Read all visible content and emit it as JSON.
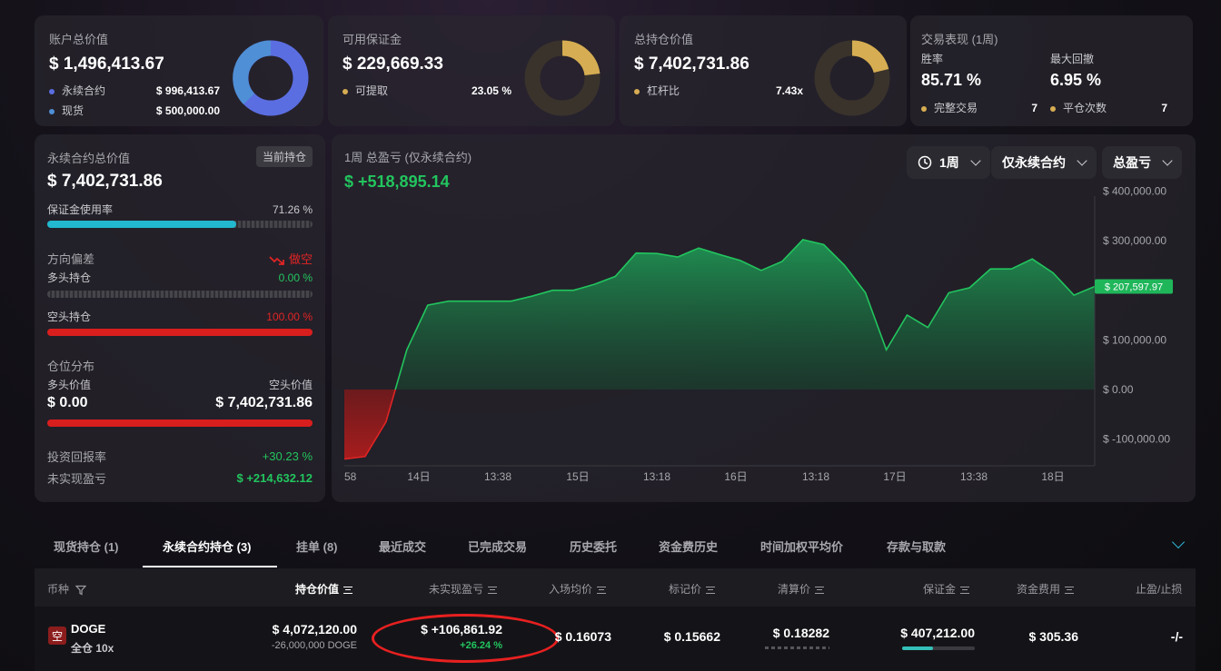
{
  "account": {
    "title": "账户总价值",
    "value": "$ 1,496,413.67",
    "items": [
      {
        "label": "永续合约",
        "value": "$ 996,413.67",
        "color": "#5b6ee1"
      },
      {
        "label": "现货",
        "value": "$ 500,000.00",
        "color": "#4f8fd6"
      }
    ]
  },
  "margin": {
    "title": "可用保证金",
    "value": "$ 229,669.33",
    "item_label": "可提取",
    "item_value": "23.05 %",
    "color": "#d6ad52"
  },
  "position_total": {
    "title": "总持仓价值",
    "value": "$ 7,402,731.86",
    "item_label": "杠杆比",
    "item_value": "7.43x",
    "color": "#d6ad52"
  },
  "performance": {
    "title": "交易表现 (1周)",
    "win_label": "胜率",
    "win_value": "85.71 %",
    "dd_label": "最大回撤",
    "dd_value": "6.95 %",
    "trades_label": "完整交易",
    "trades_value": "7",
    "close_label": "平仓次数",
    "close_value": "7"
  },
  "perp": {
    "title": "永续合约总价值",
    "badge": "当前持仓",
    "value": "$ 7,402,731.86",
    "margin_use_label": "保证金使用率",
    "margin_use_value": "71.26 %",
    "margin_use": 0.7126,
    "bias_label": "方向偏差",
    "bias_value": "做空",
    "long_label": "多头持仓",
    "long_value": "0.00 %",
    "short_label": "空头持仓",
    "short_value": "100.00 %",
    "dist_label": "仓位分布",
    "long_val_label": "多头价值",
    "short_val_label": "空头价值",
    "long_val": "$ 0.00",
    "short_val": "$ 7,402,731.86",
    "roi_label": "投资回报率",
    "roi_value": "+30.23 %",
    "upnl_label": "未实现盈亏",
    "upnl_value": "$ +214,632.12"
  },
  "pnl_chart": {
    "title": "1周 总盈亏 (仅永续合约)",
    "value": "$ +518,895.14",
    "dd1": "1周",
    "dd2": "仅永续合约",
    "dd3": "总盈亏",
    "current_label": "$ 207,597.97"
  },
  "chart_data": {
    "type": "area",
    "yticks": [
      "$ 400,000.00",
      "$ 300,000.00",
      "$ 100,000.00",
      "$ 0.00",
      "$ -100,000.00"
    ],
    "xticks": [
      "58",
      "14日",
      "13:38",
      "15日",
      "13:18",
      "16日",
      "13:18",
      "17日",
      "13:38",
      "18日"
    ],
    "ylim": [
      -150000,
      450000
    ],
    "values": [
      -140000,
      -135000,
      -65000,
      80000,
      170000,
      178000,
      178000,
      178000,
      178000,
      188000,
      200000,
      200000,
      212000,
      228000,
      275000,
      274000,
      267000,
      285000,
      272000,
      260000,
      240000,
      258000,
      302000,
      292000,
      250000,
      195000,
      80000,
      150000,
      125000,
      195000,
      205000,
      243000,
      243000,
      263000,
      235000,
      190000,
      207597
    ]
  },
  "tabs": [
    "现货持仓 (1)",
    "永续合约持仓 (3)",
    "挂单 (8)",
    "最近成交",
    "已完成交易",
    "历史委托",
    "资金费历史",
    "时间加权平均价",
    "存款与取款"
  ],
  "table": {
    "headers": [
      "币种",
      "持仓价值",
      "未实现盈亏",
      "入场均价",
      "标记价",
      "清算价",
      "保证金",
      "资金费用",
      "止盈/止损"
    ],
    "row": {
      "side_badge": "空",
      "coin": "DOGE",
      "mode": "全仓 10x",
      "value": "$ 4,072,120.00",
      "qty": "-26,000,000 DOGE",
      "upnl": "$ +106,861.92",
      "upnl_pct": "+26.24 %",
      "entry": "$ 0.16073",
      "mark": "$ 0.15662",
      "liq": "$ 0.18282",
      "margin": "$ 407,212.00",
      "funding": "$ 305.36",
      "tpsl": "-/-"
    }
  }
}
